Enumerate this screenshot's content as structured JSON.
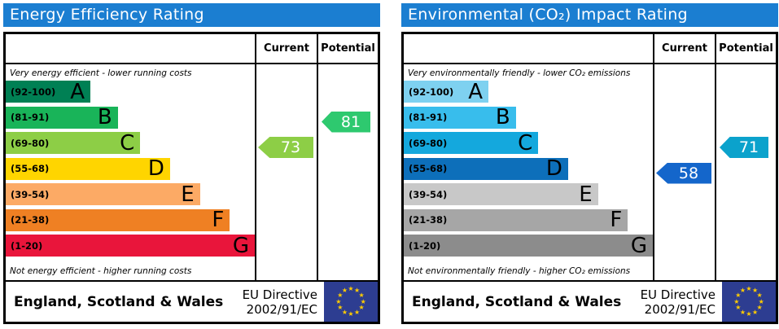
{
  "colors": {
    "header_bg": "#1b7ed1",
    "table_border": "#000000",
    "arrow_text": "#ffffff",
    "eu_flag_bg": "#2d3d91",
    "eu_flag_star": "#ffcc00"
  },
  "panels": [
    {
      "id": "energy-efficiency",
      "title": "Energy Efficiency Rating",
      "columns": {
        "current": "Current",
        "potential": "Potential"
      },
      "top_note": "Very energy efficient - lower running costs",
      "bottom_note": "Not energy efficient - higher running costs",
      "bands": [
        {
          "letter": "A",
          "range": "(92-100)",
          "min": 92,
          "max": 100,
          "color": "#008054",
          "width_pct": 34
        },
        {
          "letter": "B",
          "range": "(81-91)",
          "min": 81,
          "max": 91,
          "color": "#19b459",
          "width_pct": 45
        },
        {
          "letter": "C",
          "range": "(69-80)",
          "min": 69,
          "max": 80,
          "color": "#8dce46",
          "width_pct": 54
        },
        {
          "letter": "D",
          "range": "(55-68)",
          "min": 55,
          "max": 68,
          "color": "#ffd500",
          "width_pct": 66
        },
        {
          "letter": "E",
          "range": "(39-54)",
          "min": 39,
          "max": 54,
          "color": "#fcaa65",
          "width_pct": 78
        },
        {
          "letter": "F",
          "range": "(21-38)",
          "min": 21,
          "max": 38,
          "color": "#ef8023",
          "width_pct": 90
        },
        {
          "letter": "G",
          "range": "(1-20)",
          "min": 1,
          "max": 20,
          "color": "#e9153b",
          "width_pct": 100
        }
      ],
      "current": {
        "value": 73,
        "color": "#8dce46"
      },
      "potential": {
        "value": 81,
        "color": "#2ec96f"
      },
      "footer": {
        "region": "England, Scotland & Wales",
        "directive_line1": "EU Directive",
        "directive_line2": "2002/91/EC"
      }
    },
    {
      "id": "environmental-impact",
      "title": "Environmental (CO₂) Impact Rating",
      "columns": {
        "current": "Current",
        "potential": "Potential"
      },
      "top_note": "Very environmentally friendly - lower CO₂ emissions",
      "bottom_note": "Not environmentally friendly - higher CO₂ emissions",
      "bands": [
        {
          "letter": "A",
          "range": "(92-100)",
          "min": 92,
          "max": 100,
          "color": "#7ed1f0",
          "width_pct": 34
        },
        {
          "letter": "B",
          "range": "(81-91)",
          "min": 81,
          "max": 91,
          "color": "#38bdec",
          "width_pct": 45
        },
        {
          "letter": "C",
          "range": "(69-80)",
          "min": 69,
          "max": 80,
          "color": "#14a8dd",
          "width_pct": 54
        },
        {
          "letter": "D",
          "range": "(55-68)",
          "min": 55,
          "max": 68,
          "color": "#0d6fba",
          "width_pct": 66
        },
        {
          "letter": "E",
          "range": "(39-54)",
          "min": 39,
          "max": 54,
          "color": "#c8c8c8",
          "width_pct": 78
        },
        {
          "letter": "F",
          "range": "(21-38)",
          "min": 21,
          "max": 38,
          "color": "#a6a6a6",
          "width_pct": 90
        },
        {
          "letter": "G",
          "range": "(1-20)",
          "min": 1,
          "max": 20,
          "color": "#8c8c8c",
          "width_pct": 100
        }
      ],
      "current": {
        "value": 58,
        "color": "#1466cb"
      },
      "potential": {
        "value": 71,
        "color": "#0ba2cc"
      },
      "footer": {
        "region": "England, Scotland & Wales",
        "directive_line1": "EU Directive",
        "directive_line2": "2002/91/EC"
      }
    }
  ],
  "chart_data": [
    {
      "type": "bar",
      "title": "Energy Efficiency Rating",
      "categories": [
        "A (92-100)",
        "B (81-91)",
        "C (69-80)",
        "D (55-68)",
        "E (39-54)",
        "F (21-38)",
        "G (1-20)"
      ],
      "values": [
        34,
        45,
        54,
        66,
        78,
        90,
        100
      ],
      "series": [
        {
          "name": "Current",
          "values": [
            73
          ]
        },
        {
          "name": "Potential",
          "values": [
            81
          ]
        }
      ],
      "annotations": {
        "current_rating": 73,
        "current_band": "C",
        "potential_rating": 81,
        "potential_band": "B"
      },
      "xlabel": "",
      "ylabel": "",
      "legend_position": "column-headers",
      "notes": [
        "Very energy efficient - lower running costs",
        "Not energy efficient - higher running costs"
      ]
    },
    {
      "type": "bar",
      "title": "Environmental (CO₂) Impact Rating",
      "categories": [
        "A (92-100)",
        "B (81-91)",
        "C (69-80)",
        "D (55-68)",
        "E (39-54)",
        "F (21-38)",
        "G (1-20)"
      ],
      "values": [
        34,
        45,
        54,
        66,
        78,
        90,
        100
      ],
      "series": [
        {
          "name": "Current",
          "values": [
            58
          ]
        },
        {
          "name": "Potential",
          "values": [
            71
          ]
        }
      ],
      "annotations": {
        "current_rating": 58,
        "current_band": "D",
        "potential_rating": 71,
        "potential_band": "C"
      },
      "xlabel": "",
      "ylabel": "",
      "legend_position": "column-headers",
      "notes": [
        "Very environmentally friendly - lower CO₂ emissions",
        "Not environmentally friendly - higher CO₂ emissions"
      ]
    }
  ]
}
